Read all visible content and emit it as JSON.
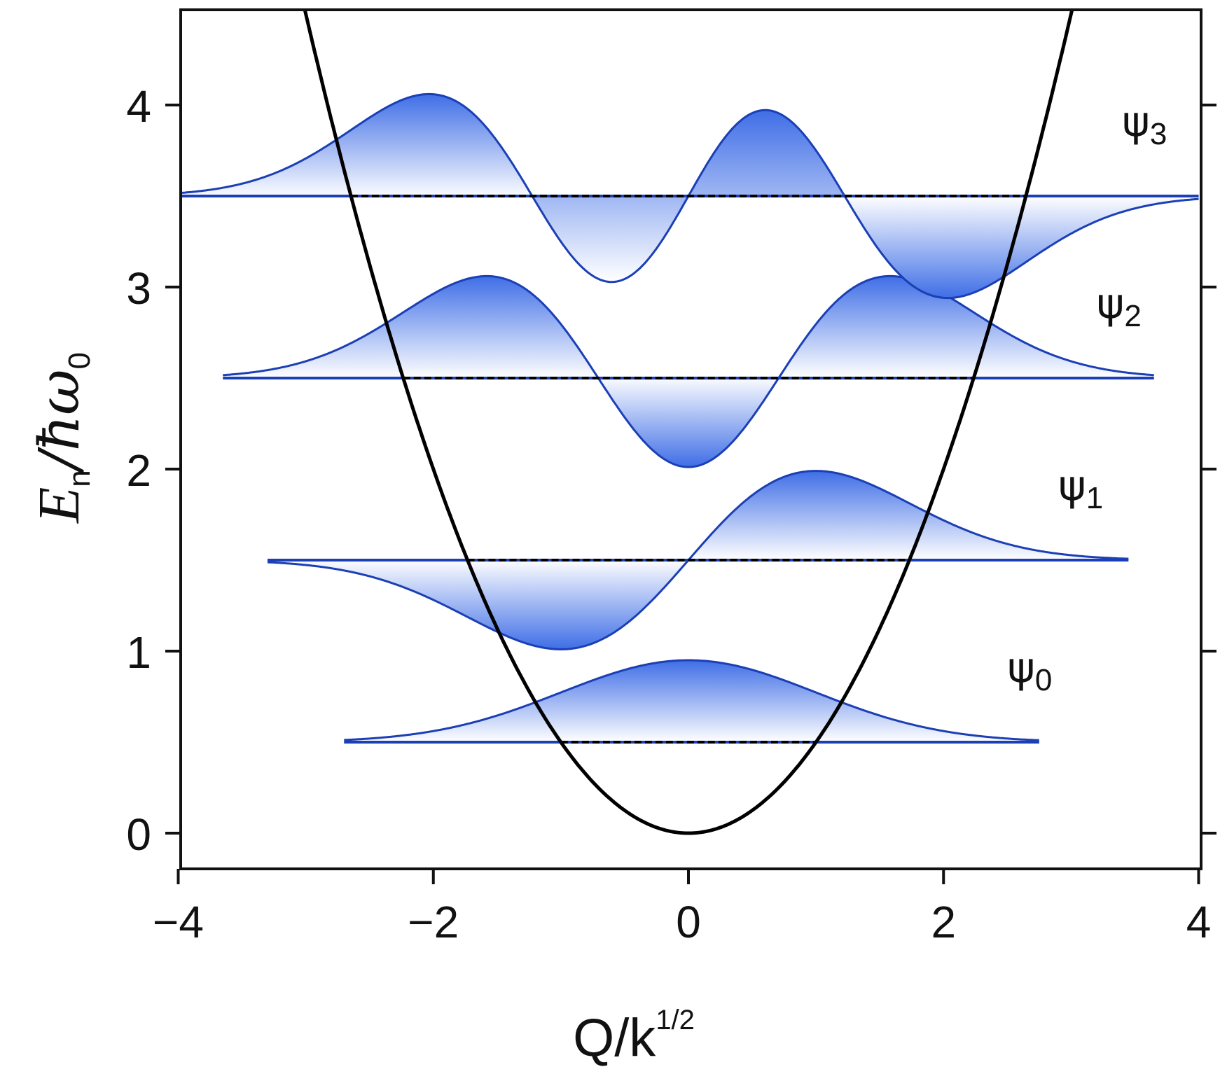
{
  "chart_data": {
    "type": "line",
    "xlabel": "Q/k",
    "xlabel_superscript": "1/2",
    "ylabel_main": "E",
    "ylabel_subscript": "n",
    "ylabel_rest": "/ħω",
    "ylabel_rest_subscript": "0",
    "xlim": [
      -4,
      4
    ],
    "ylim": [
      -0.2,
      4.5
    ],
    "xticks": [
      -4,
      -2,
      0,
      2,
      4
    ],
    "xtick_labels": [
      "−4",
      "−2",
      "0",
      "2",
      "4"
    ],
    "yticks": [
      0,
      1,
      2,
      3,
      4
    ],
    "ytick_labels": [
      "0",
      "1",
      "2",
      "3",
      "4"
    ],
    "grid": false,
    "potential": {
      "formula": "E = Q^2 / 2",
      "color": "#000000"
    },
    "levels": [
      {
        "n": 0,
        "symbol": "ψ",
        "sub": "0",
        "energy": 0.5,
        "amplitude": 0.45,
        "x_range": [
          -2.7,
          2.75
        ]
      },
      {
        "n": 1,
        "symbol": "ψ",
        "sub": "1",
        "energy": 1.5,
        "amplitude": 0.49,
        "x_range": [
          -3.3,
          3.45
        ]
      },
      {
        "n": 2,
        "symbol": "ψ",
        "sub": "2",
        "energy": 2.5,
        "amplitude": 0.56,
        "x_range": [
          -3.65,
          3.65
        ]
      },
      {
        "n": 3,
        "symbol": "ψ",
        "sub": "3",
        "energy": 3.5,
        "amplitude": 0.56,
        "x_range": [
          -4.0,
          4.0
        ]
      }
    ],
    "colors": {
      "wave": "#1b3fb5",
      "fill_edge": "#2a5ee8",
      "fill_center": "#ffffff",
      "dashed": "#000000"
    }
  }
}
